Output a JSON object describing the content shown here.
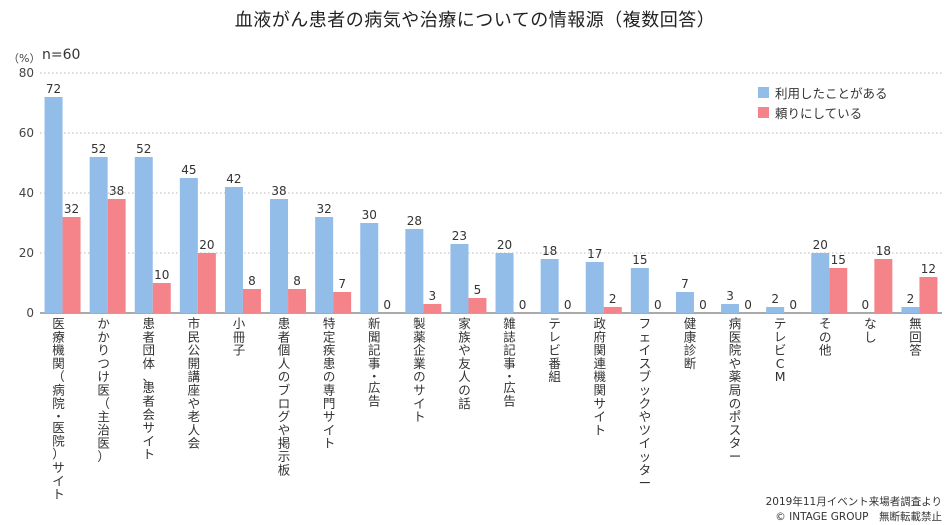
{
  "chart_data": {
    "type": "bar",
    "title": "血液がん患者の病気や治療についての情報源（複数回答）",
    "unit_label": "（%）",
    "sample_label": "n=60",
    "ylim": [
      0,
      80
    ],
    "yticks": [
      0,
      20,
      40,
      60,
      80
    ],
    "grid": true,
    "legend_position": "top-right",
    "categories": [
      "医療機関（病院・医院）サイト",
      "かかりつけ医（主治医）",
      "患者団体、患者会サイト",
      "市民公開講座や老人会",
      "小冊子",
      "患者個人のブログや掲示板",
      "特定疾患の専門サイト",
      "新聞記事・広告",
      "製薬企業のサイト",
      "家族や友人の話",
      "雑誌記事・広告",
      "テレビ番組",
      "政府関連機関サイト",
      "フェイスブックやツイッター",
      "健康診断",
      "病医院や薬局のポスター",
      "テレビCM",
      "その他",
      "なし",
      "無回答"
    ],
    "series": [
      {
        "name": "利用したことがある",
        "color": "#92bde8",
        "values": [
          72,
          52,
          52,
          45,
          42,
          38,
          32,
          30,
          28,
          23,
          20,
          18,
          17,
          15,
          7,
          3,
          2,
          20,
          0,
          2
        ]
      },
      {
        "name": "頼りにしている",
        "color": "#f5848a",
        "values": [
          32,
          38,
          10,
          20,
          8,
          8,
          7,
          0,
          3,
          5,
          0,
          0,
          2,
          0,
          0,
          0,
          0,
          15,
          18,
          12
        ]
      }
    ]
  },
  "footer": {
    "source": "2019年11月イベント来場者調査より",
    "copyright": "© INTAGE GROUP　無断転載禁止"
  }
}
